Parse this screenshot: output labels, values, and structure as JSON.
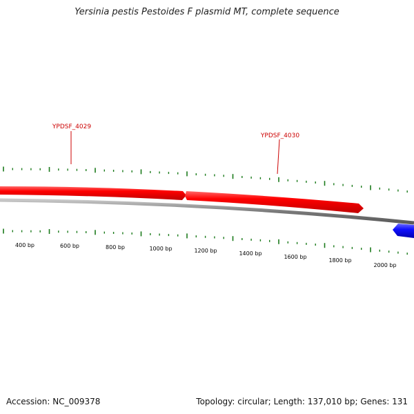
{
  "title": "Yersinia pestis Pestoides F plasmid MT, complete sequence",
  "footer": {
    "accession": "Accession: NC_009378",
    "summary": "Topology: circular; Length: 137,010 bp; Genes: 131"
  },
  "genes": [
    {
      "id": "YPDSF_4029",
      "label": "YPDSF_4029",
      "strand": "forward",
      "color": "#ff0000",
      "labeled": true
    },
    {
      "id": "YPDSF_4030",
      "label": "YPDSF_4030",
      "strand": "forward",
      "color": "#ff0000",
      "labeled": true
    },
    {
      "id": "reverse-gene",
      "label": "",
      "strand": "reverse",
      "color": "#1010ff",
      "labeled": false
    }
  ],
  "scale_labels": [
    "400 bp",
    "600 bp",
    "800 bp",
    "1000 bp",
    "1200 bp",
    "1400 bp",
    "1600 bp",
    "1800 bp",
    "2000 bp"
  ],
  "colors": {
    "forward_gene": "#ff0000",
    "reverse_gene": "#1010ff",
    "tick": "#1a7a1a",
    "backbone": "#808080",
    "gene_label": "#cc0000"
  }
}
